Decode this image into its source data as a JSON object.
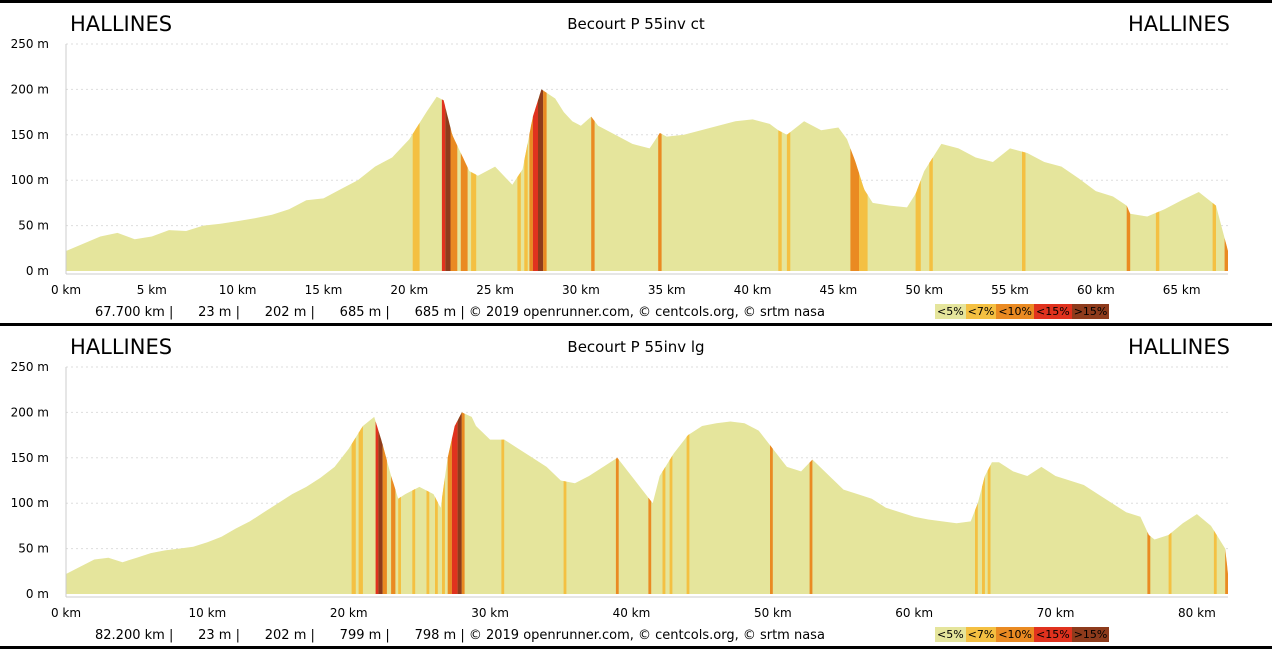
{
  "colors": {
    "lt5": "#e5e59c",
    "lt7": "#f4c042",
    "lt10": "#ea8a22",
    "lt15": "#e0321e",
    "gt15": "#8e3b1c"
  },
  "profiles": [
    {
      "start": "HALLINES",
      "end": "HALLINES",
      "title": "Becourt P 55inv ct",
      "stats_text": "67.700 km |      23 m |      202 m |      685 m |      685 m | © 2019 openrunner.com, © centcols.org, © srtm nasa",
      "legend": [
        "<5%",
        "<7%",
        "<10%",
        "<15%",
        ">15%"
      ],
      "chart_data": {
        "type": "area",
        "title": "Becourt P 55inv ct",
        "xlabel": "",
        "ylabel": "",
        "xlim": [
          0,
          67.7
        ],
        "ylim": [
          0,
          250
        ],
        "x_ticks": [
          "0 km",
          "5 km",
          "10 km",
          "15 km",
          "20 km",
          "25 km",
          "30 km",
          "35 km",
          "40 km",
          "45 km",
          "50 km",
          "55 km",
          "60 km",
          "65 km"
        ],
        "y_ticks": [
          "0 m",
          "50 m",
          "100 m",
          "150 m",
          "200 m",
          "250 m"
        ],
        "x_tick_values": [
          0,
          5,
          10,
          15,
          20,
          25,
          30,
          35,
          40,
          45,
          50,
          55,
          60,
          65
        ],
        "y_tick_values": [
          0,
          50,
          100,
          150,
          200,
          250
        ],
        "grid": true,
        "profile": [
          [
            0,
            22
          ],
          [
            1,
            30
          ],
          [
            2,
            38
          ],
          [
            3,
            42
          ],
          [
            4,
            35
          ],
          [
            5,
            38
          ],
          [
            6,
            45
          ],
          [
            7,
            44
          ],
          [
            8,
            50
          ],
          [
            9,
            52
          ],
          [
            10,
            55
          ],
          [
            11,
            58
          ],
          [
            12,
            62
          ],
          [
            13,
            68
          ],
          [
            14,
            78
          ],
          [
            15,
            80
          ],
          [
            16,
            90
          ],
          [
            17,
            100
          ],
          [
            18,
            115
          ],
          [
            19,
            125
          ],
          [
            20,
            145
          ],
          [
            21,
            175
          ],
          [
            21.6,
            192
          ],
          [
            22,
            188
          ],
          [
            22.5,
            150
          ],
          [
            23,
            130
          ],
          [
            23.5,
            110
          ],
          [
            24,
            105
          ],
          [
            25,
            115
          ],
          [
            26,
            95
          ],
          [
            26.6,
            112
          ],
          [
            27.2,
            170
          ],
          [
            27.7,
            200
          ],
          [
            28.5,
            190
          ],
          [
            29,
            175
          ],
          [
            29.5,
            165
          ],
          [
            30,
            160
          ],
          [
            30.6,
            170
          ],
          [
            31,
            160
          ],
          [
            32,
            150
          ],
          [
            33,
            140
          ],
          [
            34,
            135
          ],
          [
            34.6,
            152
          ],
          [
            35,
            148
          ],
          [
            36,
            150
          ],
          [
            37,
            155
          ],
          [
            38,
            160
          ],
          [
            39,
            165
          ],
          [
            40,
            167
          ],
          [
            41,
            162
          ],
          [
            41.5,
            155
          ],
          [
            42,
            150
          ],
          [
            43,
            165
          ],
          [
            44,
            155
          ],
          [
            45,
            158
          ],
          [
            45.5,
            145
          ],
          [
            46,
            120
          ],
          [
            46.5,
            90
          ],
          [
            47,
            75
          ],
          [
            48,
            72
          ],
          [
            49,
            70
          ],
          [
            49.5,
            85
          ],
          [
            50,
            110
          ],
          [
            50.5,
            125
          ],
          [
            51,
            140
          ],
          [
            52,
            135
          ],
          [
            53,
            125
          ],
          [
            54,
            120
          ],
          [
            55,
            135
          ],
          [
            56,
            130
          ],
          [
            57,
            120
          ],
          [
            58,
            115
          ],
          [
            59,
            102
          ],
          [
            60,
            88
          ],
          [
            61,
            82
          ],
          [
            61.8,
            72
          ],
          [
            62,
            63
          ],
          [
            63,
            60
          ],
          [
            64,
            68
          ],
          [
            65,
            78
          ],
          [
            66,
            87
          ],
          [
            67,
            72
          ],
          [
            67.7,
            22
          ]
        ],
        "steep": [
          [
            20.2,
            20.6,
            "lt7"
          ],
          [
            21.9,
            22.1,
            "lt15"
          ],
          [
            22.1,
            22.4,
            "gt15"
          ],
          [
            22.4,
            22.8,
            "lt10"
          ],
          [
            23.0,
            23.4,
            "lt10"
          ],
          [
            23.6,
            23.9,
            "lt7"
          ],
          [
            26.3,
            26.5,
            "lt7"
          ],
          [
            26.7,
            26.9,
            "lt7"
          ],
          [
            27.0,
            27.2,
            "lt10"
          ],
          [
            27.2,
            27.5,
            "lt15"
          ],
          [
            27.5,
            27.8,
            "gt15"
          ],
          [
            27.8,
            28.0,
            "lt10"
          ],
          [
            30.6,
            30.8,
            "lt10"
          ],
          [
            34.5,
            34.7,
            "lt10"
          ],
          [
            41.5,
            41.7,
            "lt7"
          ],
          [
            42.0,
            42.2,
            "lt7"
          ],
          [
            45.7,
            46.2,
            "lt10"
          ],
          [
            46.2,
            46.7,
            "lt7"
          ],
          [
            49.5,
            49.8,
            "lt7"
          ],
          [
            50.3,
            50.5,
            "lt7"
          ],
          [
            55.7,
            55.9,
            "lt7"
          ],
          [
            61.8,
            62.0,
            "lt10"
          ],
          [
            63.5,
            63.7,
            "lt7"
          ],
          [
            66.8,
            67.0,
            "lt7"
          ],
          [
            67.5,
            67.7,
            "lt10"
          ]
        ]
      }
    },
    {
      "start": "HALLINES",
      "end": "HALLINES",
      "title": "Becourt P 55inv lg",
      "stats_text": "82.200 km |      23 m |      202 m |      799 m |      798 m | © 2019 openrunner.com, © centcols.org, © srtm nasa",
      "legend": [
        "<5%",
        "<7%",
        "<10%",
        "<15%",
        ">15%"
      ],
      "chart_data": {
        "type": "area",
        "title": "Becourt P 55inv lg",
        "xlabel": "",
        "ylabel": "",
        "xlim": [
          0,
          82.2
        ],
        "ylim": [
          0,
          250
        ],
        "x_ticks": [
          "0 km",
          "10 km",
          "20 km",
          "30 km",
          "40 km",
          "50 km",
          "60 km",
          "70 km",
          "80 km"
        ],
        "y_ticks": [
          "0 m",
          "50 m",
          "100 m",
          "150 m",
          "200 m",
          "250 m"
        ],
        "x_tick_values": [
          0,
          10,
          20,
          30,
          40,
          50,
          60,
          70,
          80
        ],
        "y_tick_values": [
          0,
          50,
          100,
          150,
          200,
          250
        ],
        "grid": true,
        "profile": [
          [
            0,
            22
          ],
          [
            1,
            30
          ],
          [
            2,
            38
          ],
          [
            3,
            40
          ],
          [
            4,
            35
          ],
          [
            5,
            40
          ],
          [
            6,
            45
          ],
          [
            7,
            48
          ],
          [
            8,
            50
          ],
          [
            9,
            52
          ],
          [
            10,
            57
          ],
          [
            11,
            63
          ],
          [
            12,
            72
          ],
          [
            13,
            80
          ],
          [
            14,
            90
          ],
          [
            15,
            100
          ],
          [
            16,
            110
          ],
          [
            17,
            118
          ],
          [
            18,
            128
          ],
          [
            19,
            140
          ],
          [
            20,
            160
          ],
          [
            21,
            185
          ],
          [
            21.8,
            195
          ],
          [
            22.3,
            170
          ],
          [
            23,
            130
          ],
          [
            23.5,
            105
          ],
          [
            24,
            110
          ],
          [
            25,
            118
          ],
          [
            26,
            110
          ],
          [
            26.5,
            95
          ],
          [
            27,
            150
          ],
          [
            27.5,
            185
          ],
          [
            28,
            200
          ],
          [
            28.7,
            195
          ],
          [
            29,
            185
          ],
          [
            30,
            170
          ],
          [
            31,
            170
          ],
          [
            32,
            160
          ],
          [
            33,
            150
          ],
          [
            34,
            140
          ],
          [
            35,
            125
          ],
          [
            36,
            122
          ],
          [
            37,
            130
          ],
          [
            38,
            140
          ],
          [
            39,
            150
          ],
          [
            40,
            130
          ],
          [
            41,
            110
          ],
          [
            41.5,
            100
          ],
          [
            42,
            130
          ],
          [
            43,
            155
          ],
          [
            44,
            175
          ],
          [
            45,
            185
          ],
          [
            46,
            188
          ],
          [
            47,
            190
          ],
          [
            48,
            188
          ],
          [
            49,
            180
          ],
          [
            50,
            160
          ],
          [
            51,
            140
          ],
          [
            52,
            135
          ],
          [
            52.8,
            148
          ],
          [
            53,
            145
          ],
          [
            54,
            130
          ],
          [
            55,
            115
          ],
          [
            56,
            110
          ],
          [
            57,
            105
          ],
          [
            58,
            95
          ],
          [
            59,
            90
          ],
          [
            60,
            85
          ],
          [
            61,
            82
          ],
          [
            62,
            80
          ],
          [
            63,
            78
          ],
          [
            64,
            80
          ],
          [
            64.5,
            100
          ],
          [
            65,
            130
          ],
          [
            65.5,
            145
          ],
          [
            66,
            145
          ],
          [
            67,
            135
          ],
          [
            68,
            130
          ],
          [
            69,
            140
          ],
          [
            70,
            130
          ],
          [
            71,
            125
          ],
          [
            72,
            120
          ],
          [
            73,
            110
          ],
          [
            74,
            100
          ],
          [
            75,
            90
          ],
          [
            76,
            85
          ],
          [
            76.6,
            65
          ],
          [
            77,
            60
          ],
          [
            78,
            65
          ],
          [
            79,
            78
          ],
          [
            80,
            88
          ],
          [
            81,
            75
          ],
          [
            82,
            50
          ],
          [
            82.2,
            22
          ]
        ],
        "steep": [
          [
            20.2,
            20.5,
            "lt7"
          ],
          [
            20.7,
            21.0,
            "lt7"
          ],
          [
            21.9,
            22.1,
            "lt15"
          ],
          [
            22.1,
            22.4,
            "gt15"
          ],
          [
            22.4,
            22.7,
            "lt10"
          ],
          [
            23.0,
            23.3,
            "lt10"
          ],
          [
            23.5,
            23.7,
            "lt7"
          ],
          [
            24.5,
            24.7,
            "lt7"
          ],
          [
            25.5,
            25.7,
            "lt7"
          ],
          [
            26.1,
            26.3,
            "lt7"
          ],
          [
            26.6,
            26.8,
            "lt7"
          ],
          [
            27.0,
            27.3,
            "lt10"
          ],
          [
            27.3,
            27.7,
            "lt15"
          ],
          [
            27.7,
            28.0,
            "gt15"
          ],
          [
            28.0,
            28.2,
            "lt10"
          ],
          [
            30.8,
            31.0,
            "lt7"
          ],
          [
            35.2,
            35.4,
            "lt7"
          ],
          [
            38.9,
            39.1,
            "lt10"
          ],
          [
            41.2,
            41.4,
            "lt10"
          ],
          [
            42.2,
            42.4,
            "lt7"
          ],
          [
            42.7,
            42.9,
            "lt7"
          ],
          [
            43.9,
            44.1,
            "lt7"
          ],
          [
            49.8,
            50.0,
            "lt10"
          ],
          [
            52.6,
            52.8,
            "lt10"
          ],
          [
            64.3,
            64.5,
            "lt7"
          ],
          [
            64.8,
            65.0,
            "lt7"
          ],
          [
            65.2,
            65.4,
            "lt7"
          ],
          [
            76.5,
            76.7,
            "lt10"
          ],
          [
            78.0,
            78.2,
            "lt7"
          ],
          [
            81.2,
            81.4,
            "lt7"
          ],
          [
            82.0,
            82.2,
            "lt10"
          ]
        ]
      }
    }
  ]
}
